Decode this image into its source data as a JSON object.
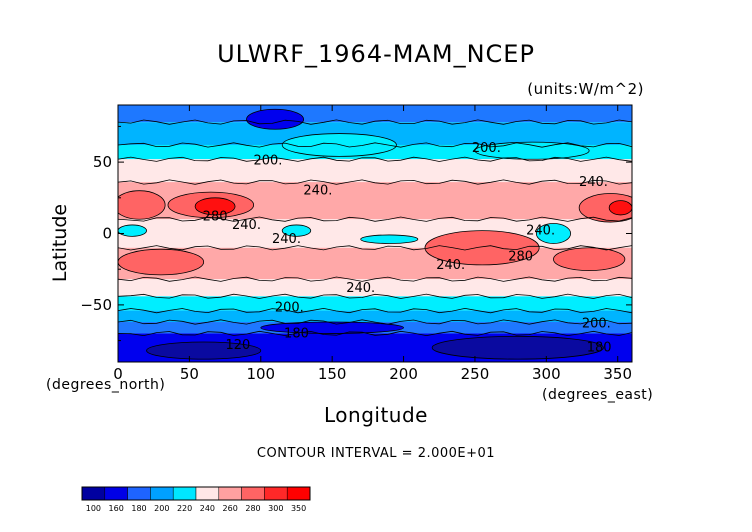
{
  "chart_data": {
    "type": "heatmap",
    "title": "ULWRF_1964-MAM_NCEP",
    "units": "(units:W/m^2)",
    "xlabel": "Longitude",
    "ylabel": "Latitude",
    "x_unit_label": "(degrees_east)",
    "y_unit_label": "(degrees_north)",
    "xlim": [
      0,
      360
    ],
    "ylim": [
      -90,
      90
    ],
    "x_ticks": [
      "0",
      "50",
      "100",
      "150",
      "200",
      "250",
      "300",
      "350"
    ],
    "y_ticks": [
      "50",
      "0",
      "−50"
    ],
    "contour_interval_text": "CONTOUR INTERVAL = 2.000E+01",
    "contour_labels": [
      {
        "text": "200.",
        "x": 105,
        "y": 51
      },
      {
        "text": "200.",
        "x": 258,
        "y": 60
      },
      {
        "text": "240.",
        "x": 140,
        "y": 30
      },
      {
        "text": "240.",
        "x": 333,
        "y": 36
      },
      {
        "text": "280",
        "x": 68,
        "y": 12
      },
      {
        "text": "240.",
        "x": 90,
        "y": 6
      },
      {
        "text": "240.",
        "x": 118,
        "y": -4
      },
      {
        "text": "240.",
        "x": 233,
        "y": -22
      },
      {
        "text": "280",
        "x": 282,
        "y": -16
      },
      {
        "text": "240.",
        "x": 296,
        "y": 2
      },
      {
        "text": "240.",
        "x": 170,
        "y": -38
      },
      {
        "text": "200.",
        "x": 120,
        "y": -52
      },
      {
        "text": "200.",
        "x": 335,
        "y": -63
      },
      {
        "text": "180",
        "x": 125,
        "y": -70
      },
      {
        "text": "120",
        "x": 84,
        "y": -78
      },
      {
        "text": "180",
        "x": 337,
        "y": -80
      }
    ],
    "colorbar": {
      "labels": [
        "100",
        "160",
        "180",
        "200",
        "220",
        "240",
        "260",
        "280",
        "300",
        "350"
      ],
      "colors": [
        "#0000a0",
        "#0000e6",
        "#1e64ff",
        "#00a0ff",
        "#00e6ff",
        "#ffe6e6",
        "#ffa0a0",
        "#ff6464",
        "#ff2828",
        "#ff0000"
      ]
    },
    "colors": {
      "very_cold": "#0a0aa0",
      "cold": "#0000ee",
      "mid_blue": "#1e78ff",
      "light_blue": "#00b4ff",
      "cyan": "#00eeff",
      "pale_pink": "#ffe8e8",
      "pink": "#ffa8a8",
      "salmon": "#ff6464",
      "red": "#ff1010"
    },
    "zonal_bands": [
      {
        "lat_max": 90,
        "lat_min": 78,
        "value_class": "mid_blue"
      },
      {
        "lat_max": 78,
        "lat_min": 62,
        "value_class": "light_blue"
      },
      {
        "lat_max": 62,
        "lat_min": 52,
        "value_class": "cyan"
      },
      {
        "lat_max": 52,
        "lat_min": 36,
        "value_class": "pale_pink"
      },
      {
        "lat_max": 36,
        "lat_min": 10,
        "value_class": "pink"
      },
      {
        "lat_max": 10,
        "lat_min": -10,
        "value_class": "pale_pink"
      },
      {
        "lat_max": -10,
        "lat_min": -32,
        "value_class": "pink"
      },
      {
        "lat_max": -32,
        "lat_min": -44,
        "value_class": "pale_pink"
      },
      {
        "lat_max": -44,
        "lat_min": -54,
        "value_class": "cyan"
      },
      {
        "lat_max": -54,
        "lat_min": -62,
        "value_class": "light_blue"
      },
      {
        "lat_max": -62,
        "lat_min": -70,
        "value_class": "mid_blue"
      },
      {
        "lat_max": -70,
        "lat_min": -90,
        "value_class": "cold"
      }
    ],
    "blobs": [
      {
        "x": 15,
        "y": 20,
        "rx": 18,
        "ry": 10,
        "value_class": "salmon"
      },
      {
        "x": 65,
        "y": 20,
        "rx": 30,
        "ry": 9,
        "value_class": "salmon"
      },
      {
        "x": 68,
        "y": 19,
        "rx": 14,
        "ry": 6,
        "value_class": "red"
      },
      {
        "x": 345,
        "y": 18,
        "rx": 22,
        "ry": 10,
        "value_class": "salmon"
      },
      {
        "x": 352,
        "y": 18,
        "rx": 8,
        "ry": 5,
        "value_class": "red"
      },
      {
        "x": 30,
        "y": -20,
        "rx": 30,
        "ry": 9,
        "value_class": "salmon"
      },
      {
        "x": 255,
        "y": -10,
        "rx": 40,
        "ry": 12,
        "value_class": "salmon"
      },
      {
        "x": 330,
        "y": -18,
        "rx": 25,
        "ry": 8,
        "value_class": "salmon"
      },
      {
        "x": 10,
        "y": 2,
        "rx": 10,
        "ry": 4,
        "value_class": "cyan"
      },
      {
        "x": 125,
        "y": 2,
        "rx": 10,
        "ry": 4,
        "value_class": "cyan"
      },
      {
        "x": 190,
        "y": -4,
        "rx": 20,
        "ry": 3,
        "value_class": "cyan"
      },
      {
        "x": 305,
        "y": 0,
        "rx": 12,
        "ry": 7,
        "value_class": "cyan"
      },
      {
        "x": 155,
        "y": 62,
        "rx": 40,
        "ry": 8,
        "value_class": "cyan"
      },
      {
        "x": 290,
        "y": 58,
        "rx": 40,
        "ry": 6,
        "value_class": "cyan"
      },
      {
        "x": 110,
        "y": 80,
        "rx": 20,
        "ry": 7,
        "value_class": "cold"
      },
      {
        "x": 280,
        "y": -80,
        "rx": 60,
        "ry": 8,
        "value_class": "very_cold"
      },
      {
        "x": 60,
        "y": -82,
        "rx": 40,
        "ry": 6,
        "value_class": "very_cold"
      },
      {
        "x": 150,
        "y": -66,
        "rx": 50,
        "ry": 4,
        "value_class": "cold"
      }
    ]
  }
}
